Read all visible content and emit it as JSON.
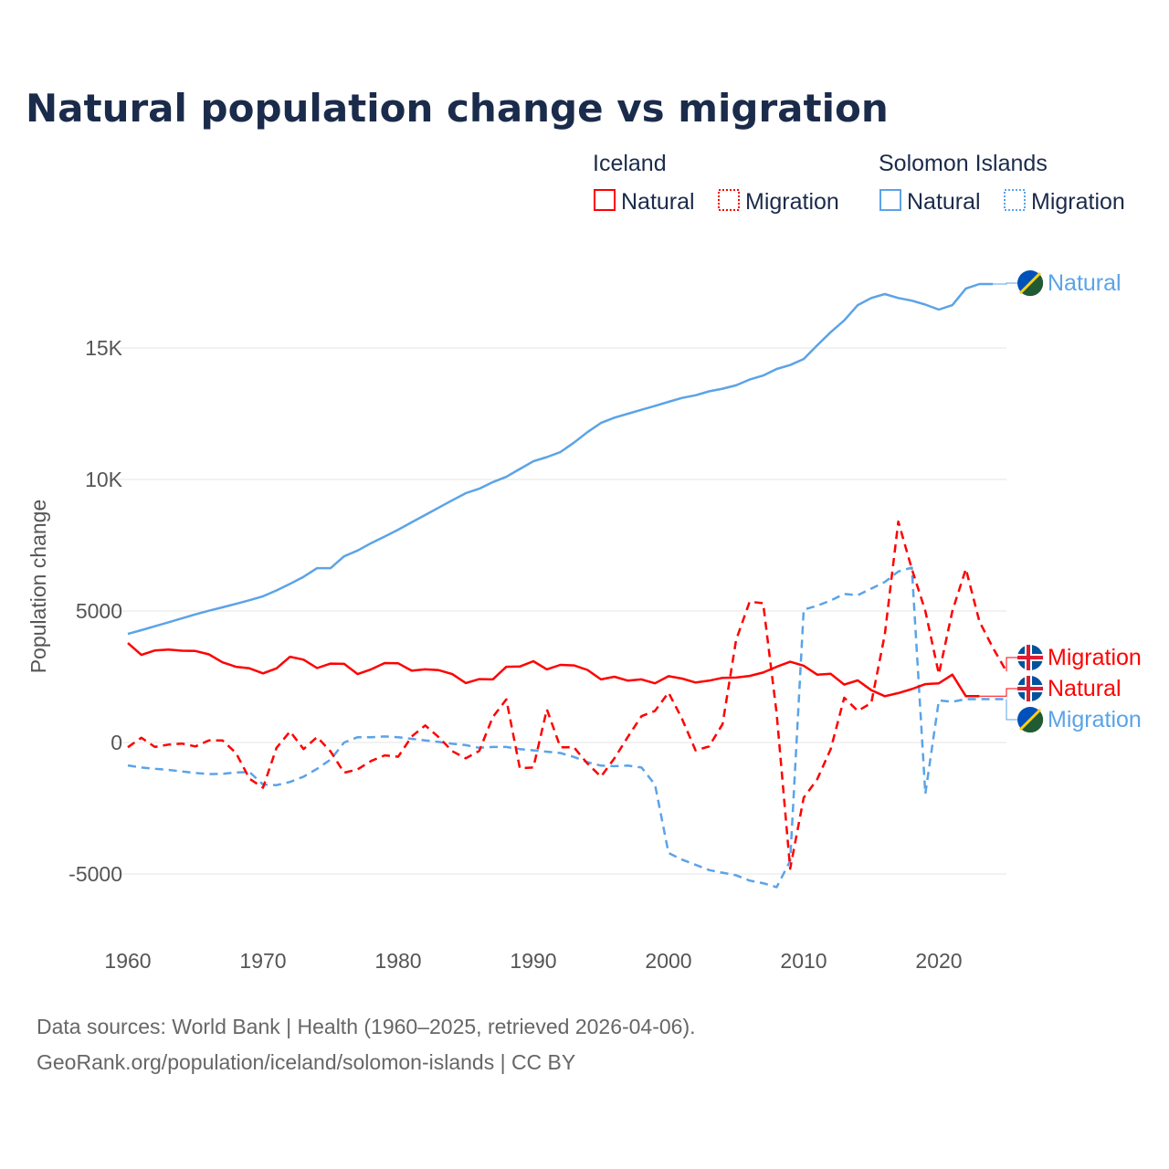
{
  "chart_data": {
    "type": "line",
    "title": "Natural population change vs migration",
    "xlabel": "",
    "ylabel": "Population change",
    "xlim": [
      1960,
      2025
    ],
    "ylim": [
      -6000,
      17500
    ],
    "x_ticks": [
      "1960",
      "1970",
      "1980",
      "1990",
      "2000",
      "2010",
      "2020"
    ],
    "y_ticks": [
      {
        "v": -5000,
        "label": "-5000"
      },
      {
        "v": 0,
        "label": "0"
      },
      {
        "v": 5000,
        "label": "5000"
      },
      {
        "v": 10000,
        "label": "10K"
      },
      {
        "v": 15000,
        "label": "15K"
      }
    ],
    "grid": true,
    "legend": {
      "placement": "top-right",
      "groups": [
        {
          "title": "Iceland",
          "items": [
            "Natural",
            "Migration"
          ]
        },
        {
          "title": "Solomon Islands",
          "items": [
            "Natural",
            "Migration"
          ]
        }
      ]
    },
    "series": [
      {
        "name": "Solomon Islands Natural",
        "country": "Solomon Islands",
        "label": "Natural",
        "color": "#5ba3e8",
        "dash": false,
        "start": 1960,
        "values": [
          4130,
          4270,
          4420,
          4570,
          4720,
          4870,
          5010,
          5140,
          5270,
          5410,
          5560,
          5780,
          6030,
          6300,
          6630,
          6630,
          7080,
          7300,
          7580,
          7830,
          8090,
          8370,
          8650,
          8930,
          9210,
          9480,
          9650,
          9900,
          10100,
          10400,
          10690,
          10850,
          11040,
          11400,
          11800,
          12150,
          12350,
          12500,
          12650,
          12800,
          12950,
          13100,
          13200,
          13350,
          13450,
          13580,
          13800,
          13950,
          14200,
          14350,
          14580,
          15100,
          15600,
          16050,
          16630,
          16900,
          17050,
          16900,
          16800,
          16650,
          16460,
          16630,
          17260,
          17430,
          17430
        ]
      },
      {
        "name": "Solomon Islands Migration",
        "country": "Solomon Islands",
        "label": "Migration",
        "color": "#5ba3e8",
        "dash": true,
        "start": 1960,
        "values": [
          -870,
          -950,
          -1000,
          -1040,
          -1100,
          -1160,
          -1200,
          -1190,
          -1140,
          -1120,
          -1600,
          -1620,
          -1500,
          -1300,
          -1000,
          -650,
          0,
          200,
          200,
          230,
          200,
          140,
          80,
          20,
          -50,
          -100,
          -200,
          -170,
          -170,
          -250,
          -300,
          -350,
          -400,
          -550,
          -750,
          -880,
          -900,
          -880,
          -950,
          -1600,
          -4200,
          -4450,
          -4650,
          -4850,
          -4950,
          -5050,
          -5250,
          -5350,
          -5500,
          -4500,
          5050,
          5200,
          5400,
          5650,
          5600,
          5850,
          6100,
          6500,
          6650,
          -1950,
          1600,
          1550,
          1650,
          1650,
          1650,
          1650
        ]
      },
      {
        "name": "Iceland Natural",
        "country": "Iceland",
        "label": "Natural",
        "color": "#ff0000",
        "dash": false,
        "start": 1960,
        "values": [
          3780,
          3330,
          3500,
          3530,
          3490,
          3480,
          3350,
          3050,
          2880,
          2820,
          2630,
          2820,
          3260,
          3150,
          2830,
          3000,
          2990,
          2600,
          2780,
          3020,
          3010,
          2730,
          2780,
          2750,
          2600,
          2260,
          2410,
          2400,
          2880,
          2890,
          3090,
          2780,
          2950,
          2930,
          2760,
          2400,
          2500,
          2350,
          2400,
          2250,
          2520,
          2430,
          2280,
          2350,
          2460,
          2470,
          2530,
          2660,
          2880,
          3070,
          2920,
          2580,
          2610,
          2200,
          2360,
          1990,
          1760,
          1880,
          2030,
          2220,
          2250,
          2580,
          1760,
          1760
        ]
      },
      {
        "name": "Iceland Migration",
        "country": "Iceland",
        "label": "Migration",
        "color": "#ff0000",
        "dash": true,
        "start": 1960,
        "values": [
          -180,
          180,
          -170,
          -80,
          -40,
          -150,
          80,
          80,
          -400,
          -1380,
          -1720,
          -200,
          420,
          -250,
          210,
          -340,
          -1150,
          -1020,
          -700,
          -490,
          -540,
          230,
          650,
          200,
          -330,
          -600,
          -320,
          970,
          1640,
          -980,
          -950,
          1260,
          -180,
          -180,
          -800,
          -1300,
          -600,
          220,
          1000,
          1200,
          1900,
          900,
          -300,
          -150,
          700,
          3900,
          5350,
          5300,
          1100,
          -4800,
          -2100,
          -1400,
          -250,
          1700,
          1200,
          1500,
          4100,
          8400,
          6600,
          5000,
          2600,
          5000,
          6600,
          4600,
          3600,
          2700
        ]
      }
    ],
    "end_labels": [
      {
        "series": 0,
        "text": "Natural"
      },
      {
        "series": 3,
        "text": "Migration"
      },
      {
        "series": 2,
        "text": "Natural"
      },
      {
        "series": 1,
        "text": "Migration"
      }
    ]
  },
  "footer": {
    "line1": "Data sources: World Bank | Health (1960–2025, retrieved 2026-04-06).",
    "line2": "GeoRank.org/population/iceland/solomon-islands | CC BY"
  },
  "colors": {
    "iceland": "#ff0000",
    "solomon": "#5ba3e8",
    "title": "#1b2b4b"
  }
}
